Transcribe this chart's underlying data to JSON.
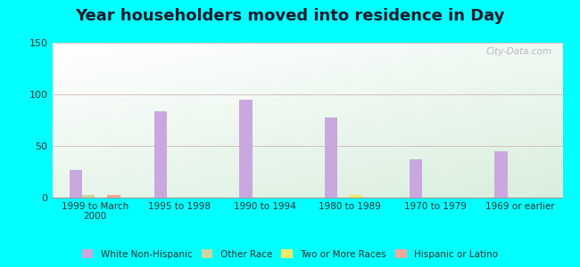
{
  "title": "Year householders moved into residence in Day",
  "categories": [
    "1999 to March\n2000",
    "1995 to 1998",
    "1990 to 1994",
    "1980 to 1989",
    "1970 to 1979",
    "1969 or earlier"
  ],
  "series": {
    "White Non-Hispanic": [
      27,
      84,
      95,
      78,
      37,
      45
    ],
    "Other Race": [
      3,
      0,
      0,
      0,
      0,
      0
    ],
    "Two or More Races": [
      0,
      0,
      0,
      3,
      0,
      0
    ],
    "Hispanic or Latino": [
      3,
      0,
      0,
      0,
      0,
      0
    ]
  },
  "colors": {
    "White Non-Hispanic": "#c9a8e0",
    "Other Race": "#c8d8a0",
    "Two or More Races": "#f0e868",
    "Hispanic or Latino": "#f0a898"
  },
  "ylim": [
    0,
    150
  ],
  "yticks": [
    0,
    50,
    100,
    150
  ],
  "bg_green": "#d8eedd",
  "bg_white": "#ffffff",
  "outer_bg": "#00ffff",
  "bar_width": 0.15,
  "title_fontsize": 13,
  "watermark": "City-Data.com"
}
